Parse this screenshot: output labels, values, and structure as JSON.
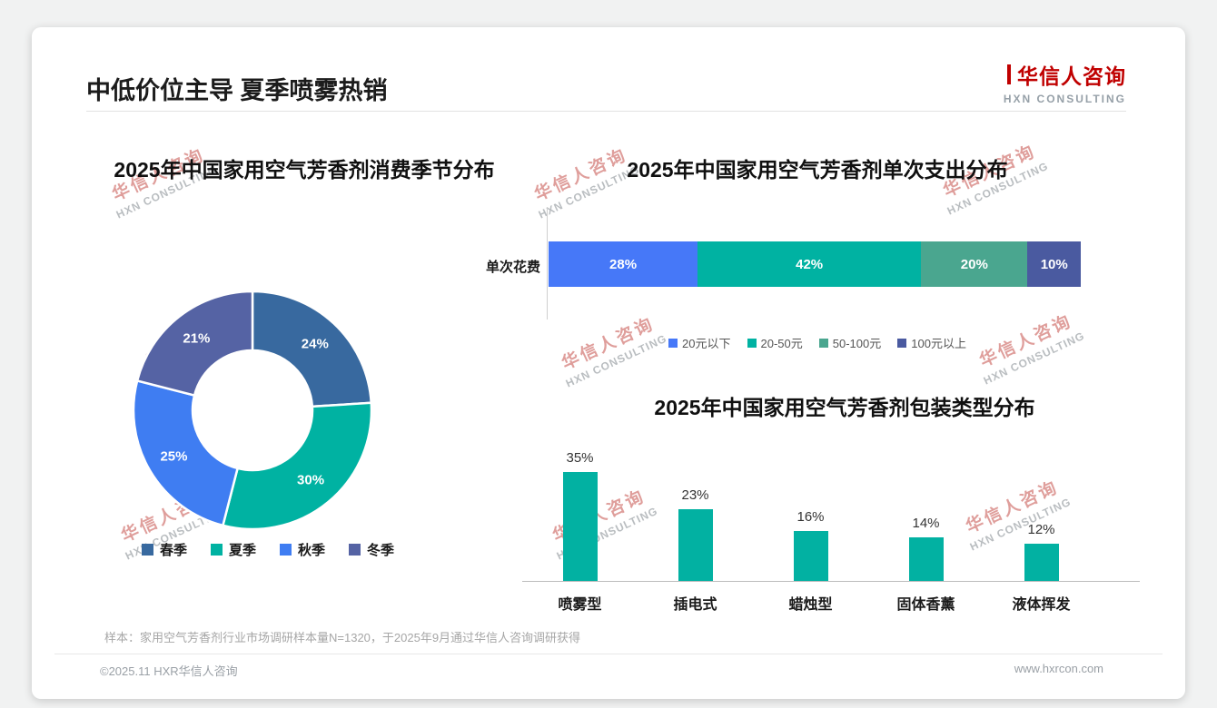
{
  "page": {
    "title": "中低价位主导 夏季喷雾热销",
    "logo": {
      "cn": "华信人咨询",
      "en": "HXN CONSULTING"
    },
    "watermark": {
      "cn": "华信人咨询",
      "en": "HXN CONSULTING"
    },
    "footnote": "样本：家用空气芳香剂行业市场调研样本量N=1320，于2025年9月通过华信人咨询调研获得",
    "footer": {
      "left": "©2025.11 HXR华信人咨询",
      "right": "www.hxrcon.com"
    },
    "accent_color": "#c00000"
  },
  "chart_data": [
    {
      "type": "pie",
      "subtype": "donut",
      "title": "2025年中国家用空气芳香剂消费季节分布",
      "categories": [
        "春季",
        "夏季",
        "秋季",
        "冬季"
      ],
      "values": [
        24,
        30,
        25,
        21
      ],
      "unit": "%",
      "colors": [
        "#38699f",
        "#00b2a2",
        "#3f7df2",
        "#5563a4"
      ],
      "legend_position": "bottom"
    },
    {
      "type": "bar",
      "subtype": "stacked-horizontal",
      "title": "2025年中国家用空气芳香剂单次支出分布",
      "row_label": "单次花费",
      "categories": [
        "20元以下",
        "20-50元",
        "50-100元",
        "100元以上"
      ],
      "values": [
        28,
        42,
        20,
        10
      ],
      "unit": "%",
      "colors": [
        "#4678f8",
        "#00b2a2",
        "#4aa68f",
        "#4a5aa0"
      ],
      "legend_position": "bottom"
    },
    {
      "type": "bar",
      "title": "2025年中国家用空气芳香剂包装类型分布",
      "categories": [
        "喷雾型",
        "插电式",
        "蜡烛型",
        "固体香薰",
        "液体挥发"
      ],
      "values": [
        35,
        23,
        16,
        14,
        12
      ],
      "unit": "%",
      "bar_color": "#02b1a2",
      "ylim": [
        0,
        40
      ],
      "grid": false
    }
  ]
}
